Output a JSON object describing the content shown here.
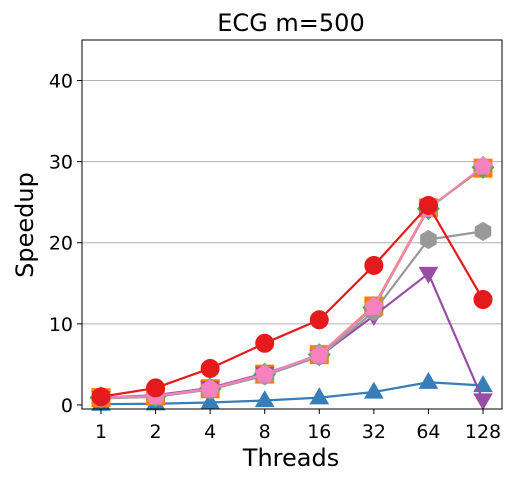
{
  "chart_data": {
    "type": "line",
    "title": "ECG m=500",
    "xlabel": "Threads",
    "ylabel": "Speedup",
    "categories": [
      "1",
      "2",
      "4",
      "8",
      "16",
      "32",
      "64",
      "128"
    ],
    "ylim": [
      -0.5,
      45
    ],
    "yticks": [
      0,
      10,
      20,
      30,
      40
    ],
    "grid": "horizontal",
    "series": [
      {
        "color": "#377eb8",
        "marker": "triangle-up",
        "values": [
          0.1,
          0.15,
          0.3,
          0.55,
          0.9,
          1.6,
          2.8,
          2.4
        ]
      },
      {
        "color": "#ff7f00",
        "marker": "square",
        "values": [
          0.9,
          1.1,
          2.0,
          3.8,
          6.2,
          12.2,
          24.3,
          29.2
        ]
      },
      {
        "color": "#4daf4a",
        "marker": "diamond",
        "values": [
          0.9,
          1.1,
          2.0,
          3.8,
          6.2,
          12.0,
          24.2,
          29.3
        ]
      },
      {
        "color": "#984ea3",
        "marker": "triangle-down",
        "values": [
          0.9,
          1.2,
          2.1,
          3.9,
          6.0,
          11.0,
          16.2,
          0.6
        ]
      },
      {
        "color": "#999999",
        "marker": "hexagon",
        "values": [
          0.8,
          1.0,
          1.9,
          3.6,
          6.0,
          11.5,
          20.4,
          21.4
        ]
      },
      {
        "color": "#f781bf",
        "marker": "pentagon",
        "values": [
          0.9,
          1.1,
          2.0,
          3.8,
          6.2,
          12.1,
          24.2,
          29.4
        ]
      },
      {
        "color": "#e41a1c",
        "marker": "circle",
        "values": [
          1.0,
          2.1,
          4.5,
          7.6,
          10.5,
          17.2,
          24.6,
          13.0
        ]
      }
    ]
  }
}
